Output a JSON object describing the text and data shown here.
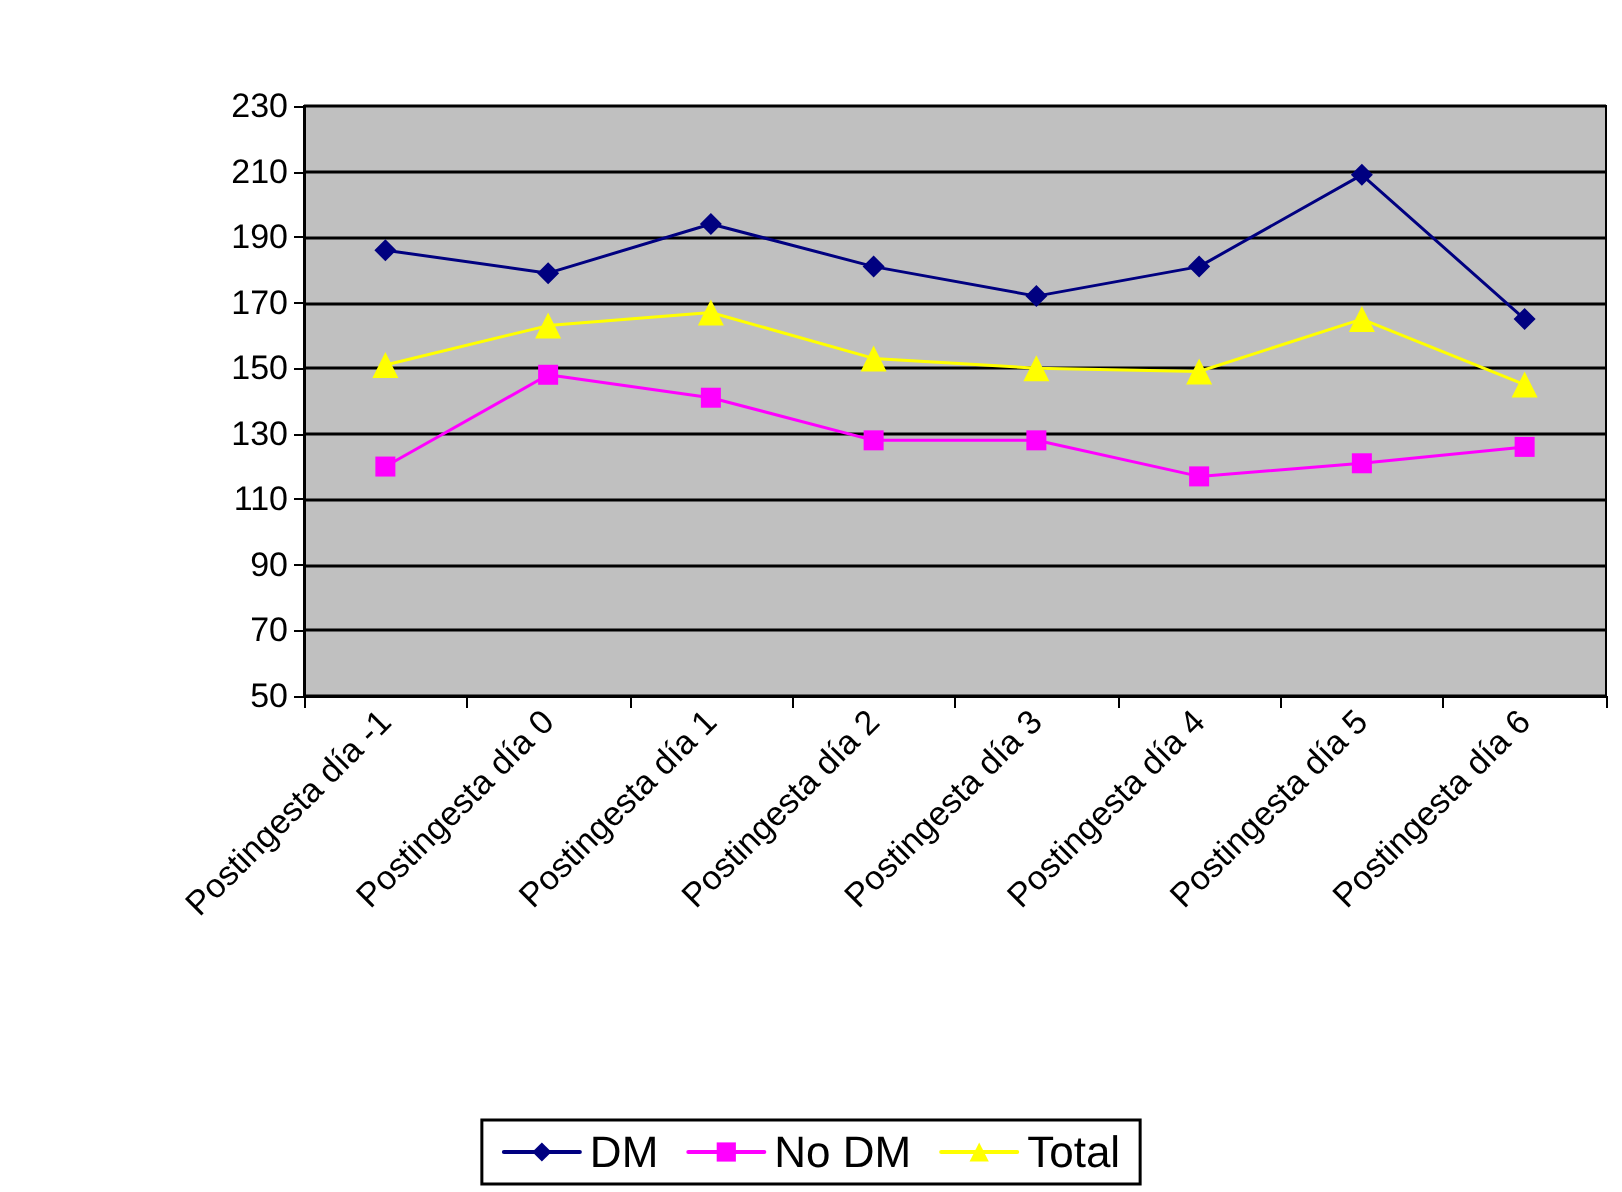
{
  "chart_data": {
    "type": "line",
    "categories": [
      "Postingesta día -1",
      "Postingesta día 0",
      "Postingesta día 1",
      "Postingesta día 2",
      "Postingesta día 3",
      "Postingesta día 4",
      "Postingesta día 5",
      "Postingesta día 6"
    ],
    "series": [
      {
        "name": "DM",
        "color": "#000080",
        "marker": "diamond",
        "values": [
          186,
          179,
          194,
          181,
          172,
          181,
          209,
          165
        ]
      },
      {
        "name": "No DM",
        "color": "#ff00ff",
        "marker": "square",
        "values": [
          120,
          148,
          141,
          128,
          128,
          117,
          121,
          126
        ]
      },
      {
        "name": "Total",
        "color": "#ffff00",
        "marker": "triangle",
        "values": [
          151,
          163,
          167,
          153,
          150,
          149,
          165,
          145
        ]
      }
    ],
    "ylim": [
      50,
      230
    ],
    "yticks": [
      50,
      70,
      90,
      110,
      130,
      150,
      170,
      190,
      210,
      230
    ],
    "grid": "y",
    "legend": "bottom",
    "line_style": "solid"
  }
}
